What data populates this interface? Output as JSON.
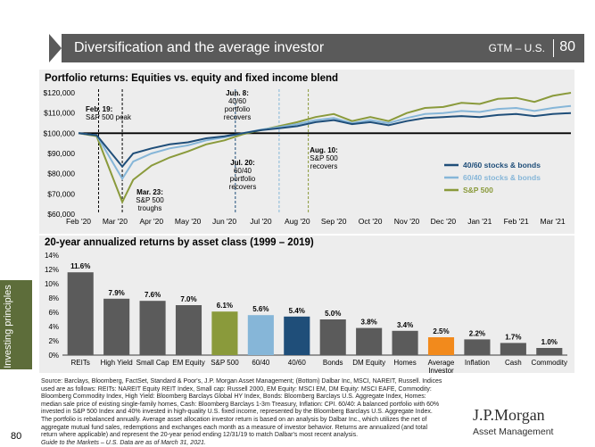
{
  "header": {
    "title": "Diversification and the average investor",
    "tag": "GTM – U.S.",
    "page": "80"
  },
  "side_tab": {
    "label": "Investing principles"
  },
  "page_number": "80",
  "logo": {
    "name": "J.P.Morgan",
    "sub": "Asset Management"
  },
  "footnote": "Source: Barclays, Bloomberg, FactSet, Standard & Poor's, J.P. Morgan Asset Management; (Bottom) Dalbar Inc, MSCI, NAREIT, Russell. Indices used are as follows: REITs: NAREIT Equity REIT Index, Small cap: Russell 2000, EM Equity: MSCI EM, DM Equity: MSCI EAFE, Commodity: Bloomberg Commodity Index, High Yield: Bloomberg Barclays Global HY Index, Bonds: Bloomberg Barclays U.S. Aggregate Index, Homes: median sale price of existing single-family homes, Cash: Bloomberg Barclays 1-3m Treasury, Inflation: CPI. 60/40: A balanced portfolio with 60% invested in S&P 500 Index and 40% invested in high-quality U.S. fixed income, represented by the Bloomberg Barclays U.S. Aggregate Index. The portfolio is rebalanced annually. Average asset allocation investor return is based on an analysis by Dalbar Inc., which utilizes the net of aggregate mutual fund sales, redemptions and exchanges each month as a measure of investor behavior. Returns are annualized (and total return where applicable) and represent the 20-year period ending 12/31/19 to match Dalbar's most recent analysis.",
  "footnote_italic": "Guide to the Markets – U.S. Data are as of March 31, 2021.",
  "chart_data": [
    {
      "type": "line",
      "title": "Portfolio returns: Equities vs. equity and fixed income blend",
      "x_ticks": [
        "Feb '20",
        "Mar '20",
        "Apr '20",
        "May '20",
        "Jun '20",
        "Jul '20",
        "Aug '20",
        "Sep '20",
        "Oct '20",
        "Nov '20",
        "Dec '20",
        "Jan '21",
        "Feb '21",
        "Mar '21"
      ],
      "y_ticks": [
        "$60,000",
        "$70,000",
        "$80,000",
        "$90,000",
        "$100,000",
        "$110,000",
        "$120,000"
      ],
      "ylim": [
        60000,
        120000
      ],
      "x": [
        0,
        0.5,
        1.2,
        1.5,
        2,
        2.5,
        3,
        3.5,
        4,
        4.5,
        5,
        5.5,
        6,
        6.5,
        7,
        7.5,
        8,
        8.5,
        9,
        9.5,
        10,
        10.5,
        11,
        11.5,
        12,
        12.5,
        13,
        13.5
      ],
      "series": [
        {
          "name": "40/60 stocks & bonds",
          "color": "#1f4e79",
          "values": [
            100000,
            99000,
            83500,
            90000,
            92500,
            94500,
            95500,
            97500,
            98500,
            100000,
            101500,
            102500,
            103500,
            105500,
            106500,
            104500,
            105500,
            104000,
            106000,
            107500,
            108000,
            108500,
            108000,
            109000,
            109500,
            108500,
            109500,
            110000
          ]
        },
        {
          "name": "60/40 stocks & bonds",
          "color": "#86b6d8",
          "values": [
            100000,
            99000,
            77500,
            86000,
            90000,
            92500,
            94000,
            96500,
            98000,
            100000,
            101800,
            103000,
            104500,
            106500,
            107500,
            105000,
            106500,
            105000,
            107500,
            109500,
            110000,
            111000,
            110500,
            112000,
            112500,
            111000,
            112500,
            113500
          ]
        },
        {
          "name": "S&P 500",
          "color": "#8a9a3b",
          "values": [
            100000,
            98500,
            66000,
            77000,
            84000,
            88000,
            91000,
            94500,
            96500,
            99500,
            101500,
            103500,
            105500,
            108000,
            109500,
            106000,
            108000,
            106000,
            110000,
            112500,
            113000,
            115000,
            114500,
            117000,
            117500,
            115500,
            118500,
            120000
          ]
        }
      ],
      "baseline": 100000,
      "annotations": [
        {
          "bold": "Feb. 19:",
          "text": "S&P 500 peak"
        },
        {
          "bold": "Mar. 23:",
          "text": "S&P 500 troughs"
        },
        {
          "bold": "Jun. 8:",
          "text": "40/60 portfolio recovers"
        },
        {
          "bold": "Jul. 20:",
          "text": "60/40 portfolio recovers"
        },
        {
          "bold": "Aug. 10:",
          "text": "S&P 500 recovers"
        }
      ]
    },
    {
      "type": "bar",
      "title": "20-year annualized returns by asset class (1999 – 2019)",
      "categories": [
        "REITs",
        "High Yield",
        "Small Cap",
        "EM Equity",
        "S&P 500",
        "60/40",
        "40/60",
        "Bonds",
        "DM Equity",
        "Homes",
        "Average Investor",
        "Inflation",
        "Cash",
        "Commodity"
      ],
      "values": [
        11.6,
        7.9,
        7.6,
        7.0,
        6.1,
        5.6,
        5.4,
        5.0,
        3.8,
        3.4,
        2.5,
        2.2,
        1.7,
        1.0
      ],
      "labels": [
        "11.6%",
        "7.9%",
        "7.6%",
        "7.0%",
        "6.1%",
        "5.6%",
        "5.4%",
        "5.0%",
        "3.8%",
        "3.4%",
        "2.5%",
        "2.2%",
        "1.7%",
        "1.0%"
      ],
      "colors": [
        "#5b5b5b",
        "#5b5b5b",
        "#5b5b5b",
        "#5b5b5b",
        "#8a9a3b",
        "#86b6d8",
        "#1f4e79",
        "#5b5b5b",
        "#5b5b5b",
        "#5b5b5b",
        "#f28a1c",
        "#5b5b5b",
        "#5b5b5b",
        "#5b5b5b"
      ],
      "y_ticks": [
        "0%",
        "2%",
        "4%",
        "6%",
        "8%",
        "10%",
        "12%",
        "14%"
      ],
      "ylim": [
        0,
        14
      ]
    }
  ]
}
